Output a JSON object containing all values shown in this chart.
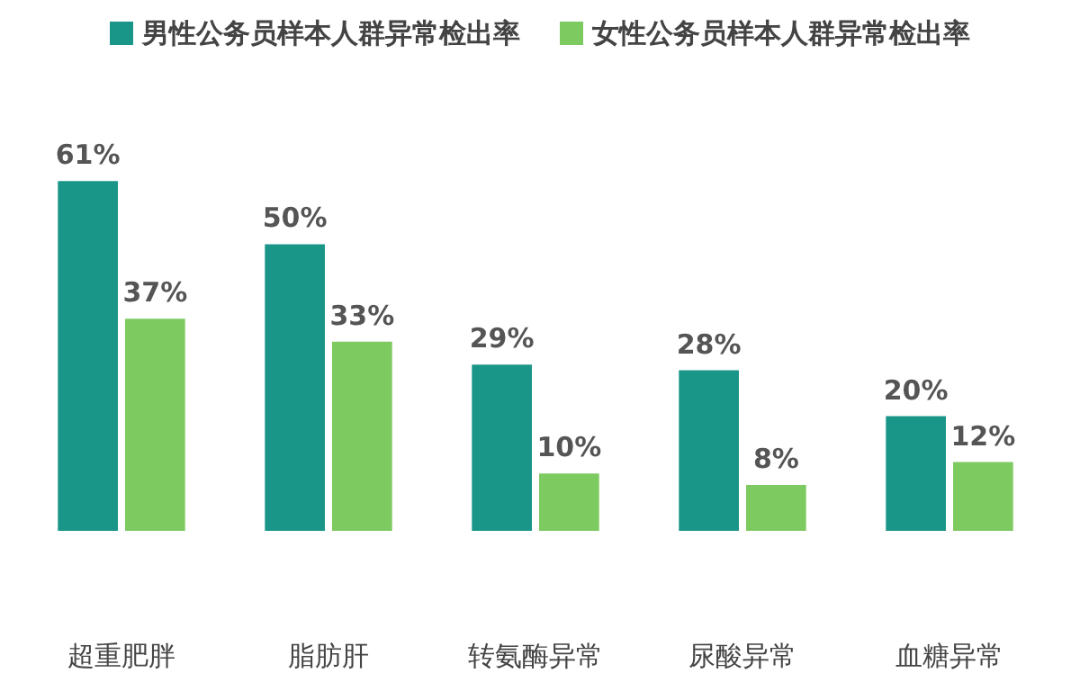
{
  "chart_data": {
    "type": "bar",
    "categories": [
      "超重肥胖",
      "脂肪肝",
      "转氨酶异常",
      "尿酸异常",
      "血糖异常"
    ],
    "series": [
      {
        "name": "男性公务员样本人群异常检出率",
        "color": "#1a9688",
        "values": [
          61,
          50,
          29,
          28,
          20
        ],
        "value_labels": [
          "61%",
          "50%",
          "29%",
          "28%",
          "20%"
        ]
      },
      {
        "name": "女性公务员样本人群异常检出率",
        "color": "#7dca61",
        "values": [
          37,
          33,
          10,
          8,
          12
        ],
        "value_labels": [
          "37%",
          "33%",
          "10%",
          "8%",
          "12%"
        ]
      }
    ],
    "legend": "top"
  }
}
